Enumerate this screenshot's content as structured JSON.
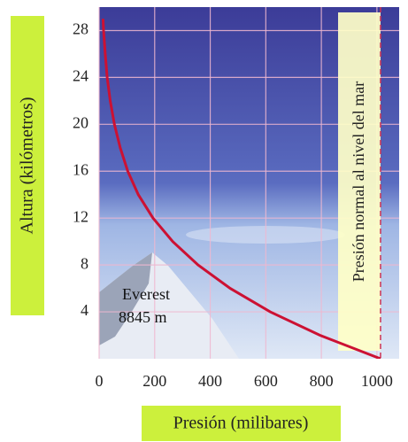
{
  "chart_data": {
    "type": "line",
    "xlabel": "Presión (milibares)",
    "ylabel": "Altura (kilómetros)",
    "series": [
      {
        "color": "#cc1133",
        "x": [
          1013,
          795,
          616,
          472,
          356,
          265,
          194,
          141,
          103,
          76,
          55,
          40,
          29,
          22,
          16,
          14
        ],
        "values": [
          0,
          2,
          4,
          6,
          8,
          10,
          12,
          14,
          16,
          18,
          20,
          22,
          24,
          26,
          28,
          29
        ]
      }
    ],
    "xlim": [
      0,
      1080
    ],
    "ylim": [
      0,
      30
    ],
    "xticks": [
      0,
      200,
      400,
      600,
      800,
      1000
    ],
    "yticks": [
      4,
      8,
      12,
      16,
      20,
      24,
      28
    ],
    "grid": true,
    "reference_line": {
      "x": 1013,
      "color": "#cc3355",
      "label": "Presión normal al nivel del mar"
    },
    "annotations": [
      "Everest",
      "8845 m"
    ]
  }
}
